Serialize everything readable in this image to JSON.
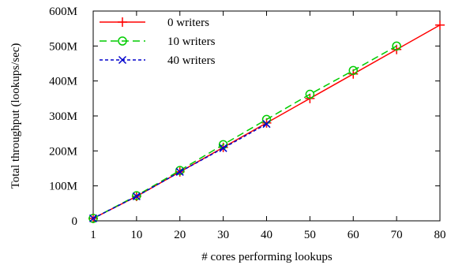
{
  "chart_data": {
    "type": "line",
    "xlabel": "# cores performing lookups",
    "ylabel": "Total throughput (lookups/sec)",
    "x_categories": [
      "1",
      "10",
      "20",
      "30",
      "40",
      "50",
      "60",
      "70",
      "80"
    ],
    "ylim": [
      0,
      600000000
    ],
    "y_ticks": [
      {
        "value": 0,
        "label": "0"
      },
      {
        "value": 100000000,
        "label": "100M"
      },
      {
        "value": 200000000,
        "label": "200M"
      },
      {
        "value": 300000000,
        "label": "300M"
      },
      {
        "value": 400000000,
        "label": "400M"
      },
      {
        "value": 500000000,
        "label": "500M"
      },
      {
        "value": 600000000,
        "label": "600M"
      }
    ],
    "grid": false,
    "legend_position": "top-left",
    "series": [
      {
        "name": "0 writers",
        "color": "#ff0000",
        "dash": "solid",
        "marker": "plus",
        "points": [
          {
            "x": "1",
            "y": 7000000
          },
          {
            "x": "10",
            "y": 70000000
          },
          {
            "x": "20",
            "y": 140000000
          },
          {
            "x": "30",
            "y": 210000000
          },
          {
            "x": "40",
            "y": 280000000
          },
          {
            "x": "50",
            "y": 350000000
          },
          {
            "x": "60",
            "y": 420000000
          },
          {
            "x": "70",
            "y": 490000000
          },
          {
            "x": "80",
            "y": 560000000
          }
        ]
      },
      {
        "name": "10 writers",
        "color": "#00cc00",
        "dash": "dashed",
        "marker": "circle",
        "points": [
          {
            "x": "1",
            "y": 7000000
          },
          {
            "x": "10",
            "y": 72000000
          },
          {
            "x": "20",
            "y": 144000000
          },
          {
            "x": "30",
            "y": 218000000
          },
          {
            "x": "40",
            "y": 290000000
          },
          {
            "x": "50",
            "y": 362000000
          },
          {
            "x": "60",
            "y": 430000000
          },
          {
            "x": "70",
            "y": 500000000
          }
        ]
      },
      {
        "name": "40 writers",
        "color": "#0000cc",
        "dash": "dotted",
        "marker": "x",
        "points": [
          {
            "x": "1",
            "y": 7000000
          },
          {
            "x": "10",
            "y": 70000000
          },
          {
            "x": "20",
            "y": 140000000
          },
          {
            "x": "30",
            "y": 208000000
          },
          {
            "x": "40",
            "y": 277000000
          }
        ]
      }
    ]
  }
}
